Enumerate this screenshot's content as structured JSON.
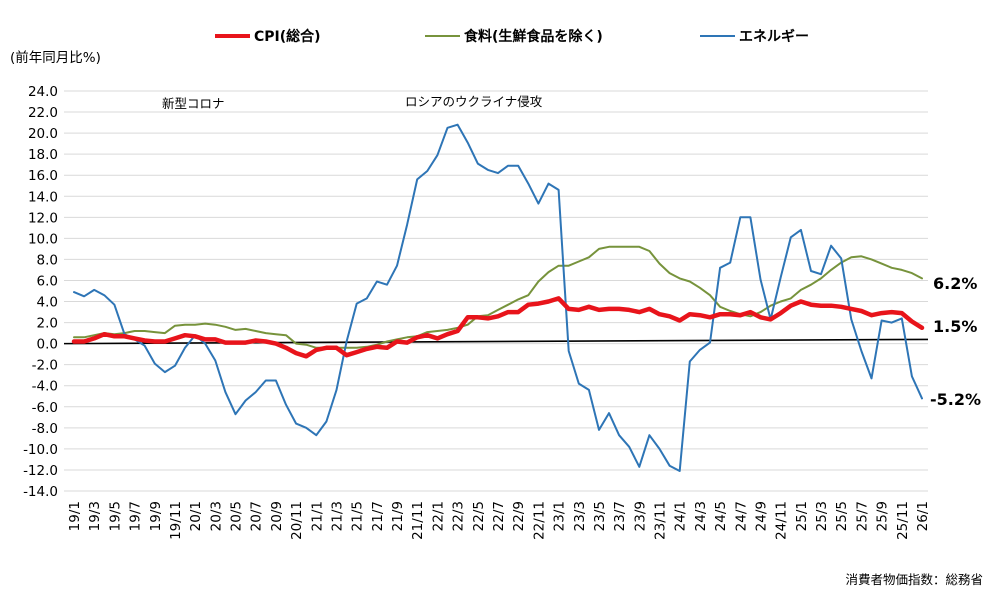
{
  "chart_data": {
    "type": "line",
    "title": "",
    "ylabel": "(前年同月比%)",
    "xlabel": "",
    "ylim": [
      -14,
      24
    ],
    "ytick_step": 2,
    "yticks": [
      "24.0",
      "22.0",
      "20.0",
      "18.0",
      "16.0",
      "14.0",
      "12.0",
      "10.0",
      "8.0",
      "6.0",
      "4.0",
      "2.0",
      "0.0",
      "-2.0",
      "-4.0",
      "-6.0",
      "-8.0",
      "-10.0",
      "-12.0",
      "-14.0"
    ],
    "grid": true,
    "legend_position": "top",
    "x_start": "19/1",
    "x_end": "26/1",
    "x_tick_labels": [
      "19/1",
      "19/3",
      "19/5",
      "19/7",
      "19/9",
      "19/11",
      "20/1",
      "20/3",
      "20/5",
      "20/7",
      "20/9",
      "20/11",
      "21/1",
      "21/3",
      "21/5",
      "21/7",
      "21/9",
      "21/11",
      "22/1",
      "22/3",
      "22/5",
      "22/7",
      "22/9",
      "22/11",
      "23/1",
      "23/3",
      "23/5",
      "23/7",
      "23/9",
      "23/11",
      "24/1",
      "24/3",
      "24/5",
      "24/7",
      "24/9",
      "24/11",
      "25/1",
      "25/3",
      "25/5",
      "25/7",
      "25/9",
      "25/11",
      "26/1"
    ],
    "series": [
      {
        "name": "CPI(総合)",
        "color": "#e8141b",
        "values": [
          0.2,
          0.2,
          0.5,
          0.9,
          0.7,
          0.7,
          0.5,
          0.3,
          0.2,
          0.2,
          0.5,
          0.8,
          0.7,
          0.4,
          0.4,
          0.1,
          0.1,
          0.1,
          0.3,
          0.2,
          0.0,
          -0.4,
          -0.9,
          -1.2,
          -0.6,
          -0.4,
          -0.4,
          -1.1,
          -0.8,
          -0.5,
          -0.3,
          -0.4,
          0.2,
          0.1,
          0.6,
          0.8,
          0.5,
          0.9,
          1.2,
          2.5,
          2.5,
          2.4,
          2.6,
          3.0,
          3.0,
          3.7,
          3.8,
          4.0,
          4.3,
          3.3,
          3.2,
          3.5,
          3.2,
          3.3,
          3.3,
          3.2,
          3.0,
          3.3,
          2.8,
          2.6,
          2.2,
          2.8,
          2.7,
          2.5,
          2.8,
          2.8,
          2.7,
          3.0,
          2.5,
          2.3,
          2.9,
          3.6,
          4.0,
          3.7,
          3.6,
          3.6,
          3.5,
          3.3,
          3.1,
          2.7,
          2.9,
          3.0,
          2.9,
          2.1,
          1.5
        ]
      },
      {
        "name": "食料(生鮮食品を除く)",
        "color": "#77933c",
        "values": [
          0.6,
          0.6,
          0.8,
          1.0,
          0.9,
          1.0,
          1.2,
          1.2,
          1.1,
          1.0,
          1.7,
          1.8,
          1.8,
          1.9,
          1.8,
          1.6,
          1.3,
          1.4,
          1.2,
          1.0,
          0.9,
          0.8,
          0.0,
          -0.1,
          -0.4,
          -0.4,
          -0.4,
          -0.4,
          -0.4,
          -0.3,
          -0.1,
          0.2,
          0.4,
          0.6,
          0.7,
          1.1,
          1.2,
          1.3,
          1.5,
          1.8,
          2.6,
          2.7,
          3.2,
          3.7,
          4.2,
          4.6,
          5.9,
          6.8,
          7.4,
          7.4,
          7.8,
          8.2,
          9.0,
          9.2,
          9.2,
          9.2,
          9.2,
          8.8,
          7.6,
          6.7,
          6.2,
          5.9,
          5.3,
          4.6,
          3.5,
          3.1,
          2.8,
          2.6,
          3.0,
          3.6,
          4.0,
          4.3,
          5.1,
          5.6,
          6.2,
          7.0,
          7.7,
          8.2,
          8.3,
          8.0,
          7.6,
          7.2,
          7.0,
          6.7,
          6.2
        ]
      },
      {
        "name": "エネルギー",
        "color": "#2e75b6",
        "values": [
          4.9,
          4.5,
          5.1,
          4.6,
          3.7,
          0.9,
          0.4,
          -0.2,
          -1.9,
          -2.7,
          -2.1,
          -0.4,
          0.8,
          0.0,
          -1.6,
          -4.6,
          -6.7,
          -5.4,
          -4.6,
          -3.5,
          -3.5,
          -5.8,
          -7.6,
          -8.0,
          -8.7,
          -7.4,
          -4.4,
          0.2,
          3.8,
          4.3,
          5.9,
          5.6,
          7.4,
          11.3,
          15.6,
          16.4,
          17.9,
          20.5,
          20.8,
          19.1,
          17.1,
          16.5,
          16.2,
          16.9,
          16.9,
          15.2,
          13.3,
          15.2,
          14.6,
          -0.7,
          -3.8,
          -4.4,
          -8.2,
          -6.6,
          -8.7,
          -9.8,
          -11.7,
          -8.7,
          -10.0,
          -11.6,
          -12.1,
          -1.7,
          -0.6,
          0.1,
          7.2,
          7.7,
          12.0,
          12.0,
          6.1,
          2.3,
          6.3,
          10.1,
          10.8,
          6.9,
          6.6,
          9.3,
          8.1,
          2.3,
          -0.7,
          -3.3,
          2.2,
          2.0,
          2.4,
          -3.1,
          -5.2
        ]
      }
    ],
    "reference_line": {
      "color": "#000000",
      "start": 0.0,
      "end": 0.4
    },
    "end_labels": [
      "6.2%",
      "1.5%",
      "-5.2%"
    ],
    "annotations": [
      {
        "text": "新型コロナ",
        "at": "20/4"
      },
      {
        "text": "ロシアのウクライナ侵攻",
        "at": "22/4"
      }
    ],
    "source": "消費者物価指数：総務省"
  }
}
